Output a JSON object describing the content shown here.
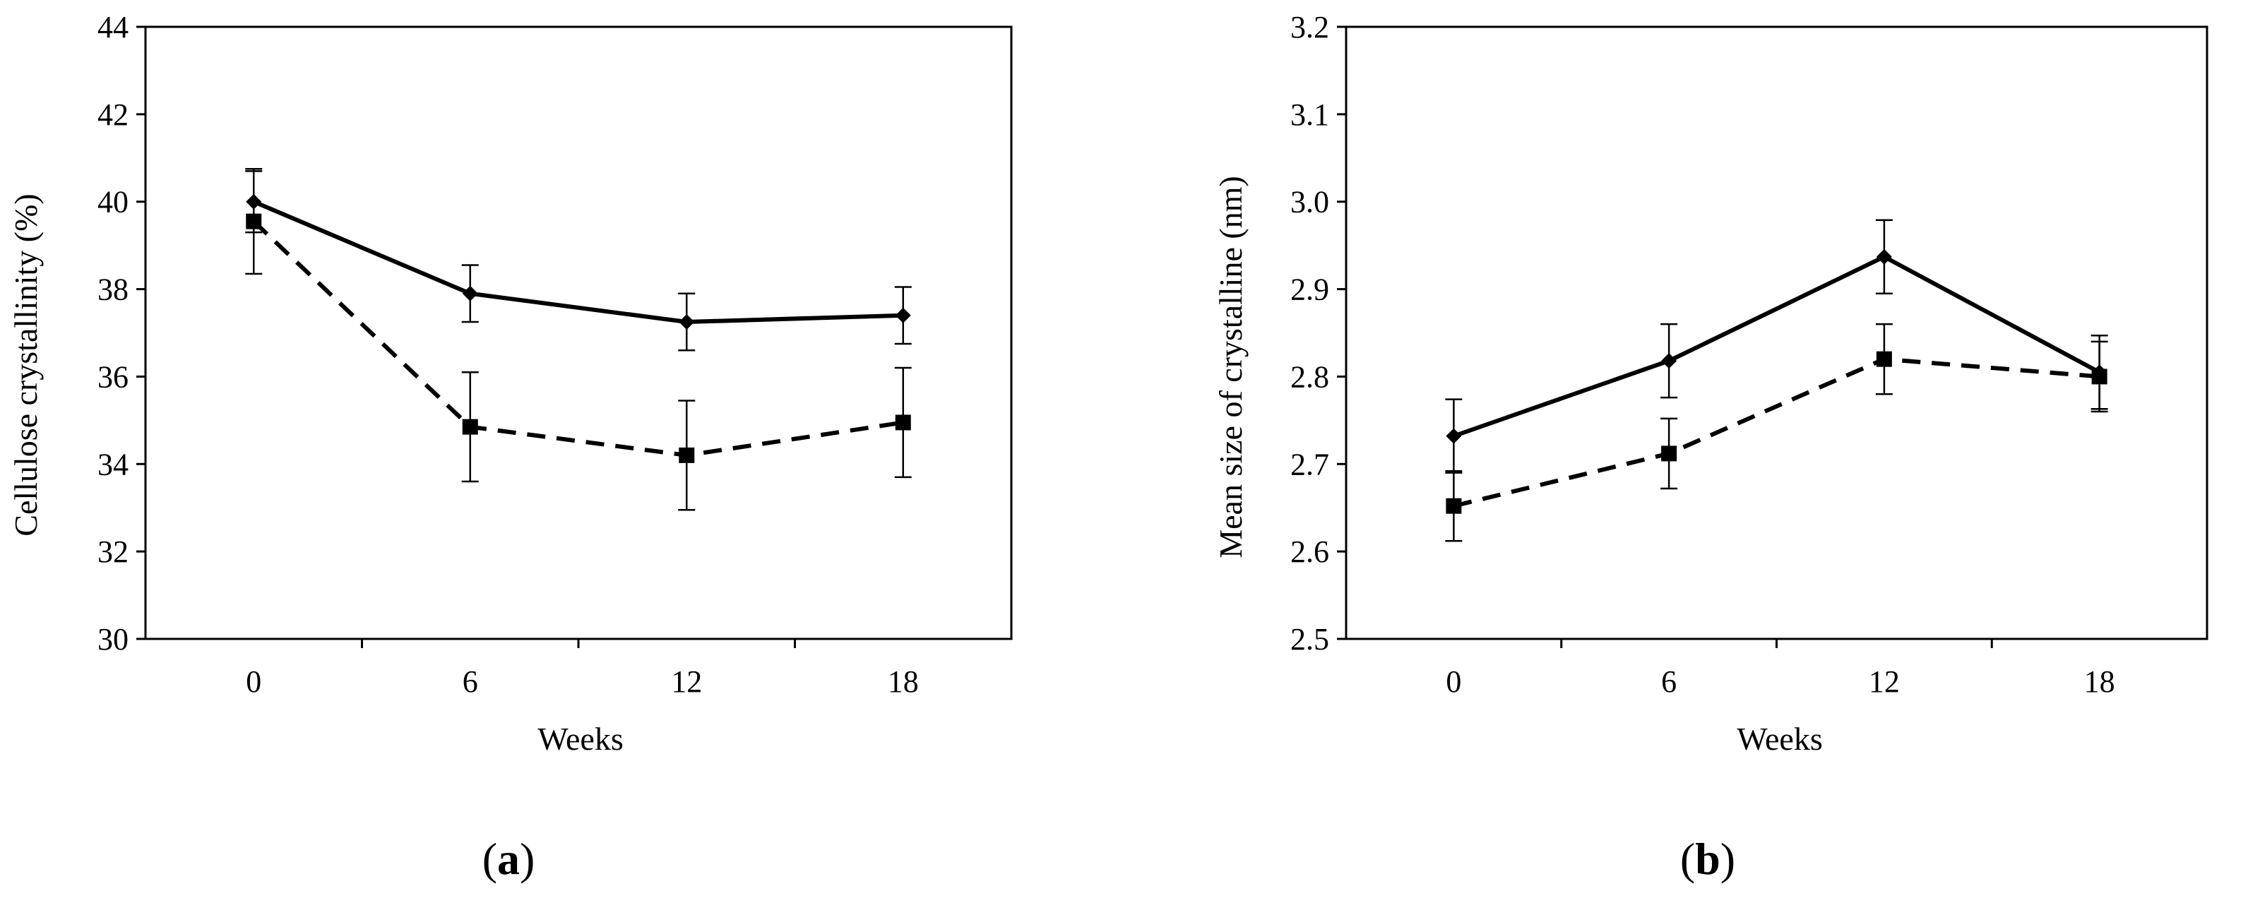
{
  "chart_data": [
    {
      "type": "line",
      "panel_label": {
        "open": "(",
        "letter": "a",
        "close": ")"
      },
      "xlabel": "Weeks",
      "ylabel": "Cellulose crystallinity (%)",
      "categories": [
        "0",
        "6",
        "12",
        "18"
      ],
      "ylim": [
        30,
        44
      ],
      "yticks": [
        "30",
        "32",
        "34",
        "36",
        "38",
        "40",
        "42",
        "44"
      ],
      "grid": false,
      "legend": "none",
      "series": [
        {
          "style": "solid",
          "marker": "diamond",
          "values": [
            40.0,
            37.9,
            37.25,
            37.4
          ],
          "errors": [
            0.7,
            0.65,
            0.65,
            0.65
          ]
        },
        {
          "style": "dashed",
          "marker": "square",
          "values": [
            39.55,
            34.85,
            34.2,
            34.95
          ],
          "errors": [
            1.2,
            1.25,
            1.25,
            1.25
          ]
        }
      ]
    },
    {
      "type": "line",
      "panel_label": {
        "open": "(",
        "letter": "b",
        "close": ")"
      },
      "xlabel": "Weeks",
      "ylabel": "Mean size of crystalline (nm)",
      "categories": [
        "0",
        "6",
        "12",
        "18"
      ],
      "ylim": [
        2.5,
        3.2
      ],
      "yticks": [
        "2.5",
        "2.6",
        "2.7",
        "2.8",
        "2.9",
        "3.0",
        "3.1",
        "3.2"
      ],
      "grid": false,
      "legend": "none",
      "series": [
        {
          "style": "solid",
          "marker": "diamond",
          "values": [
            2.732,
            2.818,
            2.937,
            2.805
          ],
          "errors": [
            0.042,
            0.042,
            0.042,
            0.042
          ]
        },
        {
          "style": "dashed",
          "marker": "square",
          "values": [
            2.652,
            2.712,
            2.82,
            2.8
          ],
          "errors": [
            0.04,
            0.04,
            0.04,
            0.04
          ]
        }
      ]
    }
  ]
}
